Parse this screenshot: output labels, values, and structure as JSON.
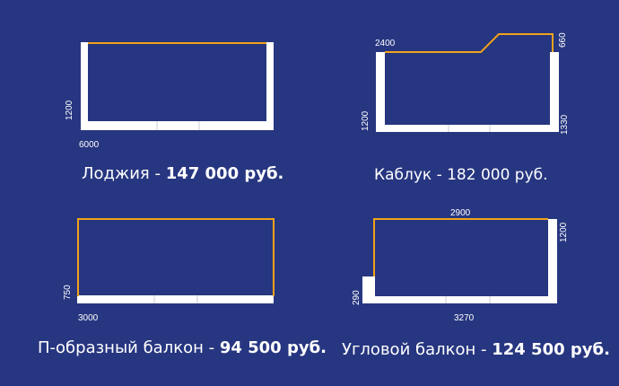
{
  "colors": {
    "background": "#273680",
    "wall": "#ffffff",
    "wall_joint": "#c9ccd6",
    "glazing": "#f1a31a",
    "text": "#ffffff"
  },
  "balconies": [
    {
      "caption": "Лоджия - ",
      "price": "147 000 руб.",
      "dimensions": [
        "1200",
        "6000"
      ]
    },
    {
      "caption": "Каблук - 182 000 руб.",
      "price": "",
      "dimensions": [
        "2400",
        "660",
        "1200",
        "1330"
      ]
    },
    {
      "caption": "П-образный балкон - ",
      "price": "94 500 руб.",
      "dimensions": [
        "750",
        "3000"
      ]
    },
    {
      "caption": "Угловой балкон - ",
      "price": "124 500 руб.",
      "dimensions": [
        "2900",
        "1200",
        "290",
        "3270"
      ]
    }
  ]
}
